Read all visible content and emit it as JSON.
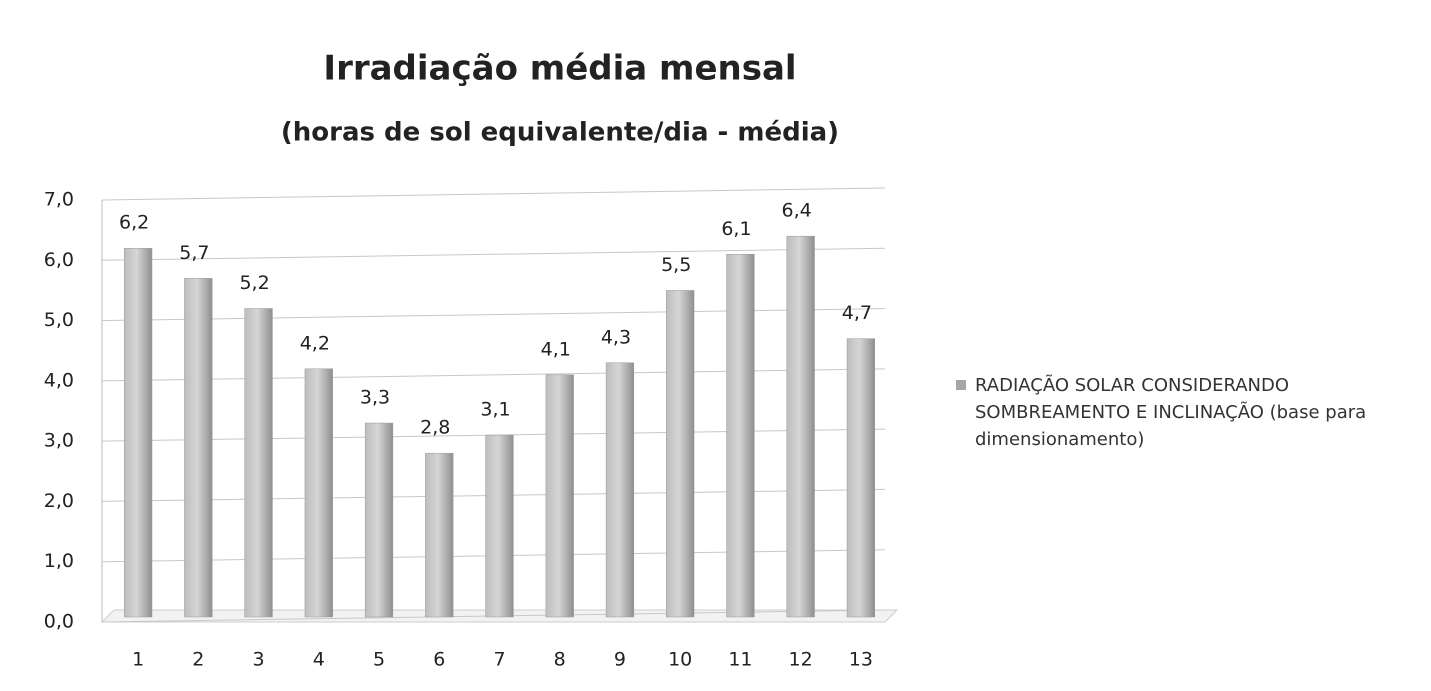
{
  "chart_data": {
    "type": "bar",
    "title": "Irradiação média mensal",
    "subtitle": "(horas de sol equivalente/dia - média)",
    "categories": [
      "1",
      "2",
      "3",
      "4",
      "5",
      "6",
      "7",
      "8",
      "9",
      "10",
      "11",
      "12",
      "13"
    ],
    "series": [
      {
        "name": "RADIAÇÃO SOLAR CONSIDERANDO SOMBREAMENTO E INCLINAÇÃO (base para dimensionamento)",
        "color": "#a6a6a6",
        "values": [
          6.2,
          5.7,
          5.2,
          4.2,
          3.3,
          2.8,
          3.1,
          4.1,
          4.3,
          5.5,
          6.1,
          6.4,
          4.7
        ],
        "value_labels": [
          "6,2",
          "5,7",
          "5,2",
          "4,2",
          "3,3",
          "2,8",
          "3,1",
          "4,1",
          "4,3",
          "5,5",
          "6,1",
          "6,4",
          "4,7"
        ]
      }
    ],
    "ylim": [
      0,
      7
    ],
    "yticks": [
      {
        "value": 0,
        "label": "0,0"
      },
      {
        "value": 1,
        "label": "1,0"
      },
      {
        "value": 2,
        "label": "2,0"
      },
      {
        "value": 3,
        "label": "3,0"
      },
      {
        "value": 4,
        "label": "4,0"
      },
      {
        "value": 5,
        "label": "5,0"
      },
      {
        "value": 6,
        "label": "6,0"
      },
      {
        "value": 7,
        "label": "7,0"
      }
    ],
    "grid": true,
    "legend": "right"
  }
}
